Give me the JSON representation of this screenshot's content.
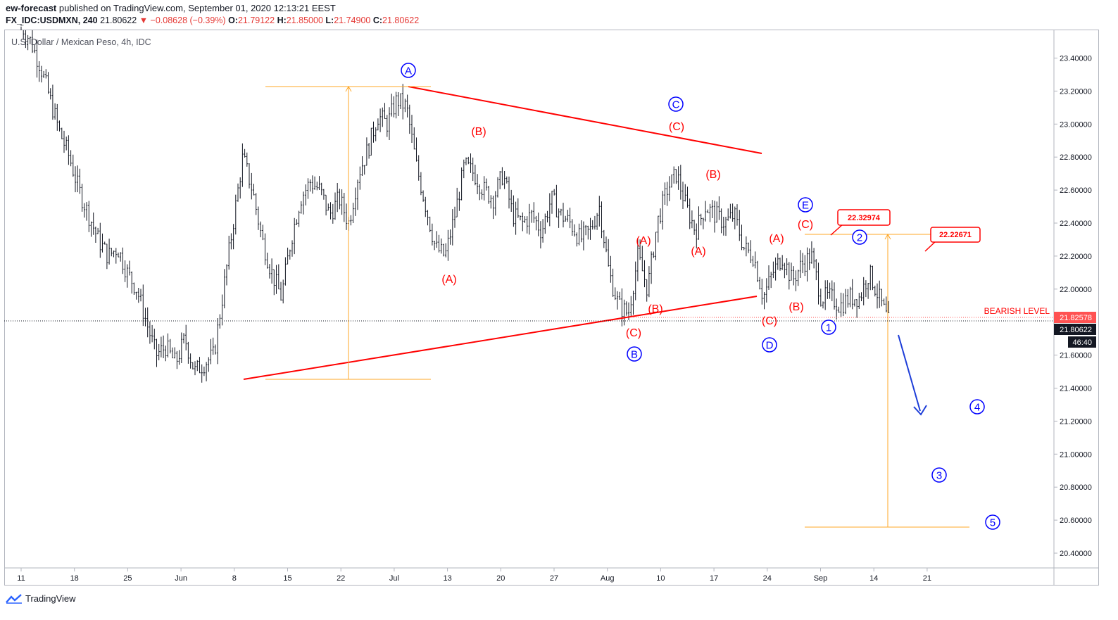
{
  "header": {
    "author": "ew-forecast",
    "published": "published on TradingView.com, September 01, 2020 12:13:21 EEST",
    "symbol": "FX_IDC:USDMXN, 240",
    "last": "21.80622",
    "change": "▼ −0.08628 (−0.39%)",
    "o_label": "O:",
    "o_val": "21.79122",
    "h_label": "H:",
    "h_val": "21.85000",
    "l_label": "L:",
    "l_val": "21.74900",
    "c_label": "C:",
    "c_val": "21.80622"
  },
  "legend_title": "U.S. Dollar / Mexican Peso, 4h, IDC",
  "footer": {
    "brand": "TradingView"
  },
  "colors": {
    "red": "#ff0000",
    "blue": "#0000ff",
    "orange": "#ffa726",
    "bars": "#131722"
  },
  "chart_data": {
    "type": "ohlc",
    "ylim": [
      20.3,
      23.6
    ],
    "y_ticks": [
      "23.40000",
      "23.20000",
      "23.00000",
      "22.80000",
      "22.60000",
      "22.40000",
      "22.20000",
      "22.00000",
      "21.60000",
      "21.40000",
      "21.20000",
      "21.00000",
      "20.80000",
      "20.60000",
      "20.40000"
    ],
    "x_ticks": [
      "11",
      "18",
      "25",
      "Jun",
      "8",
      "15",
      "22",
      "Jul",
      "13",
      "20",
      "27",
      "Aug",
      "10",
      "17",
      "24",
      "Sep",
      "14",
      "21"
    ],
    "price_series": [
      23.6,
      23.5,
      23.35,
      23.15,
      22.95,
      22.8,
      22.6,
      22.45,
      22.3,
      22.2,
      22.25,
      22.1,
      22.0,
      21.8,
      21.6,
      21.65,
      21.55,
      21.7,
      21.5,
      21.55,
      21.6,
      22.0,
      22.4,
      22.8,
      22.6,
      22.3,
      22.1,
      21.95,
      22.3,
      22.55,
      22.65,
      22.6,
      22.45,
      22.55,
      22.4,
      22.7,
      22.85,
      23.05,
      23.0,
      23.15,
      23.1,
      22.75,
      22.5,
      22.25,
      22.2,
      22.45,
      22.75,
      22.7,
      22.6,
      22.55,
      22.7,
      22.45,
      22.4,
      22.45,
      22.35,
      22.55,
      22.45,
      22.4,
      22.3,
      22.35,
      22.5,
      22.1,
      21.9,
      21.85,
      22.2,
      22.0,
      22.4,
      22.6,
      22.7,
      22.5,
      22.35,
      22.5,
      22.45,
      22.4,
      22.45,
      22.25,
      22.2,
      21.95,
      22.1,
      22.2,
      22.05,
      22.15,
      22.2,
      21.95,
      21.95,
      21.9,
      21.95,
      21.95,
      22.1,
      21.95,
      21.8
    ],
    "levels": [
      {
        "label": "22.32974",
        "value": 22.32974
      },
      {
        "label": "22.22671",
        "value": 22.22671
      },
      {
        "label": "BEARISH LEVEL",
        "value": 21.82578,
        "tag": "21.82578"
      },
      {
        "label": "last",
        "value": 21.80622,
        "tag": "21.80622"
      }
    ],
    "countdown": "46:40",
    "red_labels": [
      "(B)",
      "(A)",
      "(C)",
      "(A)",
      "(B)",
      "(C)",
      "(B)",
      "(A)",
      "(A)",
      "(B)",
      "(C)",
      "(C)"
    ],
    "blue_labels": [
      "A",
      "B",
      "C",
      "D",
      "E",
      "1",
      "2",
      "3",
      "4",
      "5"
    ]
  }
}
